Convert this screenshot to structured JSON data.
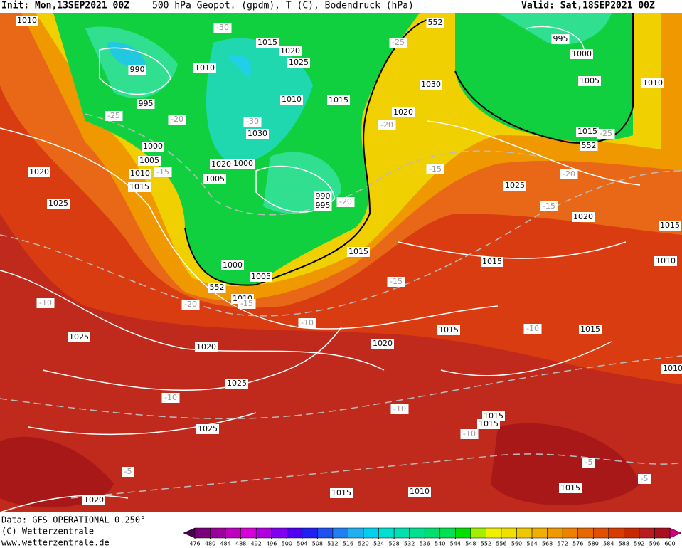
{
  "header": {
    "init": "Init: Mon,13SEP2021 00Z",
    "title": "500 hPa Geopot. (gpdm), T (C), Bodendruck (hPa)",
    "valid": "Valid: Sat,18SEP2021 00Z"
  },
  "footer": {
    "source": "Data: GFS OPERATIONAL 0.250°",
    "copyright": "(C) Wetterzentrale",
    "url": "www.wetterzentrale.de"
  },
  "legend": {
    "ticks": [
      476,
      480,
      484,
      488,
      492,
      496,
      500,
      504,
      508,
      512,
      516,
      520,
      524,
      528,
      532,
      536,
      540,
      544,
      548,
      552,
      556,
      560,
      564,
      568,
      572,
      576,
      580,
      584,
      588,
      592,
      596,
      600
    ],
    "colors": [
      "#4b0050",
      "#7a007a",
      "#9c009c",
      "#c000c0",
      "#d800d8",
      "#b000e0",
      "#8000f0",
      "#5000f0",
      "#2020f0",
      "#2050f0",
      "#2080f0",
      "#20b0f0",
      "#00d0f0",
      "#00e0d0",
      "#00e0b0",
      "#00e090",
      "#00e070",
      "#00e050",
      "#00e000",
      "#a0f000",
      "#f0f000",
      "#f0e000",
      "#f0c800",
      "#f0b000",
      "#f09800",
      "#f08000",
      "#e86800",
      "#e05000",
      "#d83c00",
      "#c82800",
      "#b81c1c",
      "#a81020",
      "#d00080"
    ]
  },
  "map": {
    "pressure_labels": [
      "1010",
      "990",
      "995",
      "1010",
      "1015",
      "1020",
      "1025",
      "1010",
      "1015",
      "1030",
      "1020",
      "1000",
      "1005",
      "1000",
      "1005",
      "1010",
      "1015",
      "1020",
      "1025",
      "990",
      "995",
      "1015",
      "1000",
      "1005",
      "1010",
      "1020",
      "1030",
      "995",
      "1000",
      "1005",
      "1010",
      "1015",
      "1025",
      "1020",
      "1015",
      "1010",
      "1015",
      "1015",
      "1015",
      "1020",
      "1025",
      "1020",
      "1025",
      "1025",
      "1015",
      "1015",
      "1020",
      "1015",
      "1010",
      "1015",
      "1010"
    ],
    "temperature_labels": [
      "-30",
      "-25",
      "-25",
      "-20",
      "-15",
      "-30",
      "-20",
      "-15",
      "-20",
      "-20",
      "-15",
      "-25",
      "-15",
      "-20",
      "-15",
      "-10",
      "-10",
      "-10",
      "-10",
      "-10",
      "-10",
      "-5",
      "-5",
      "-5"
    ],
    "geopotential_labels": [
      "552",
      "552",
      "552"
    ]
  }
}
